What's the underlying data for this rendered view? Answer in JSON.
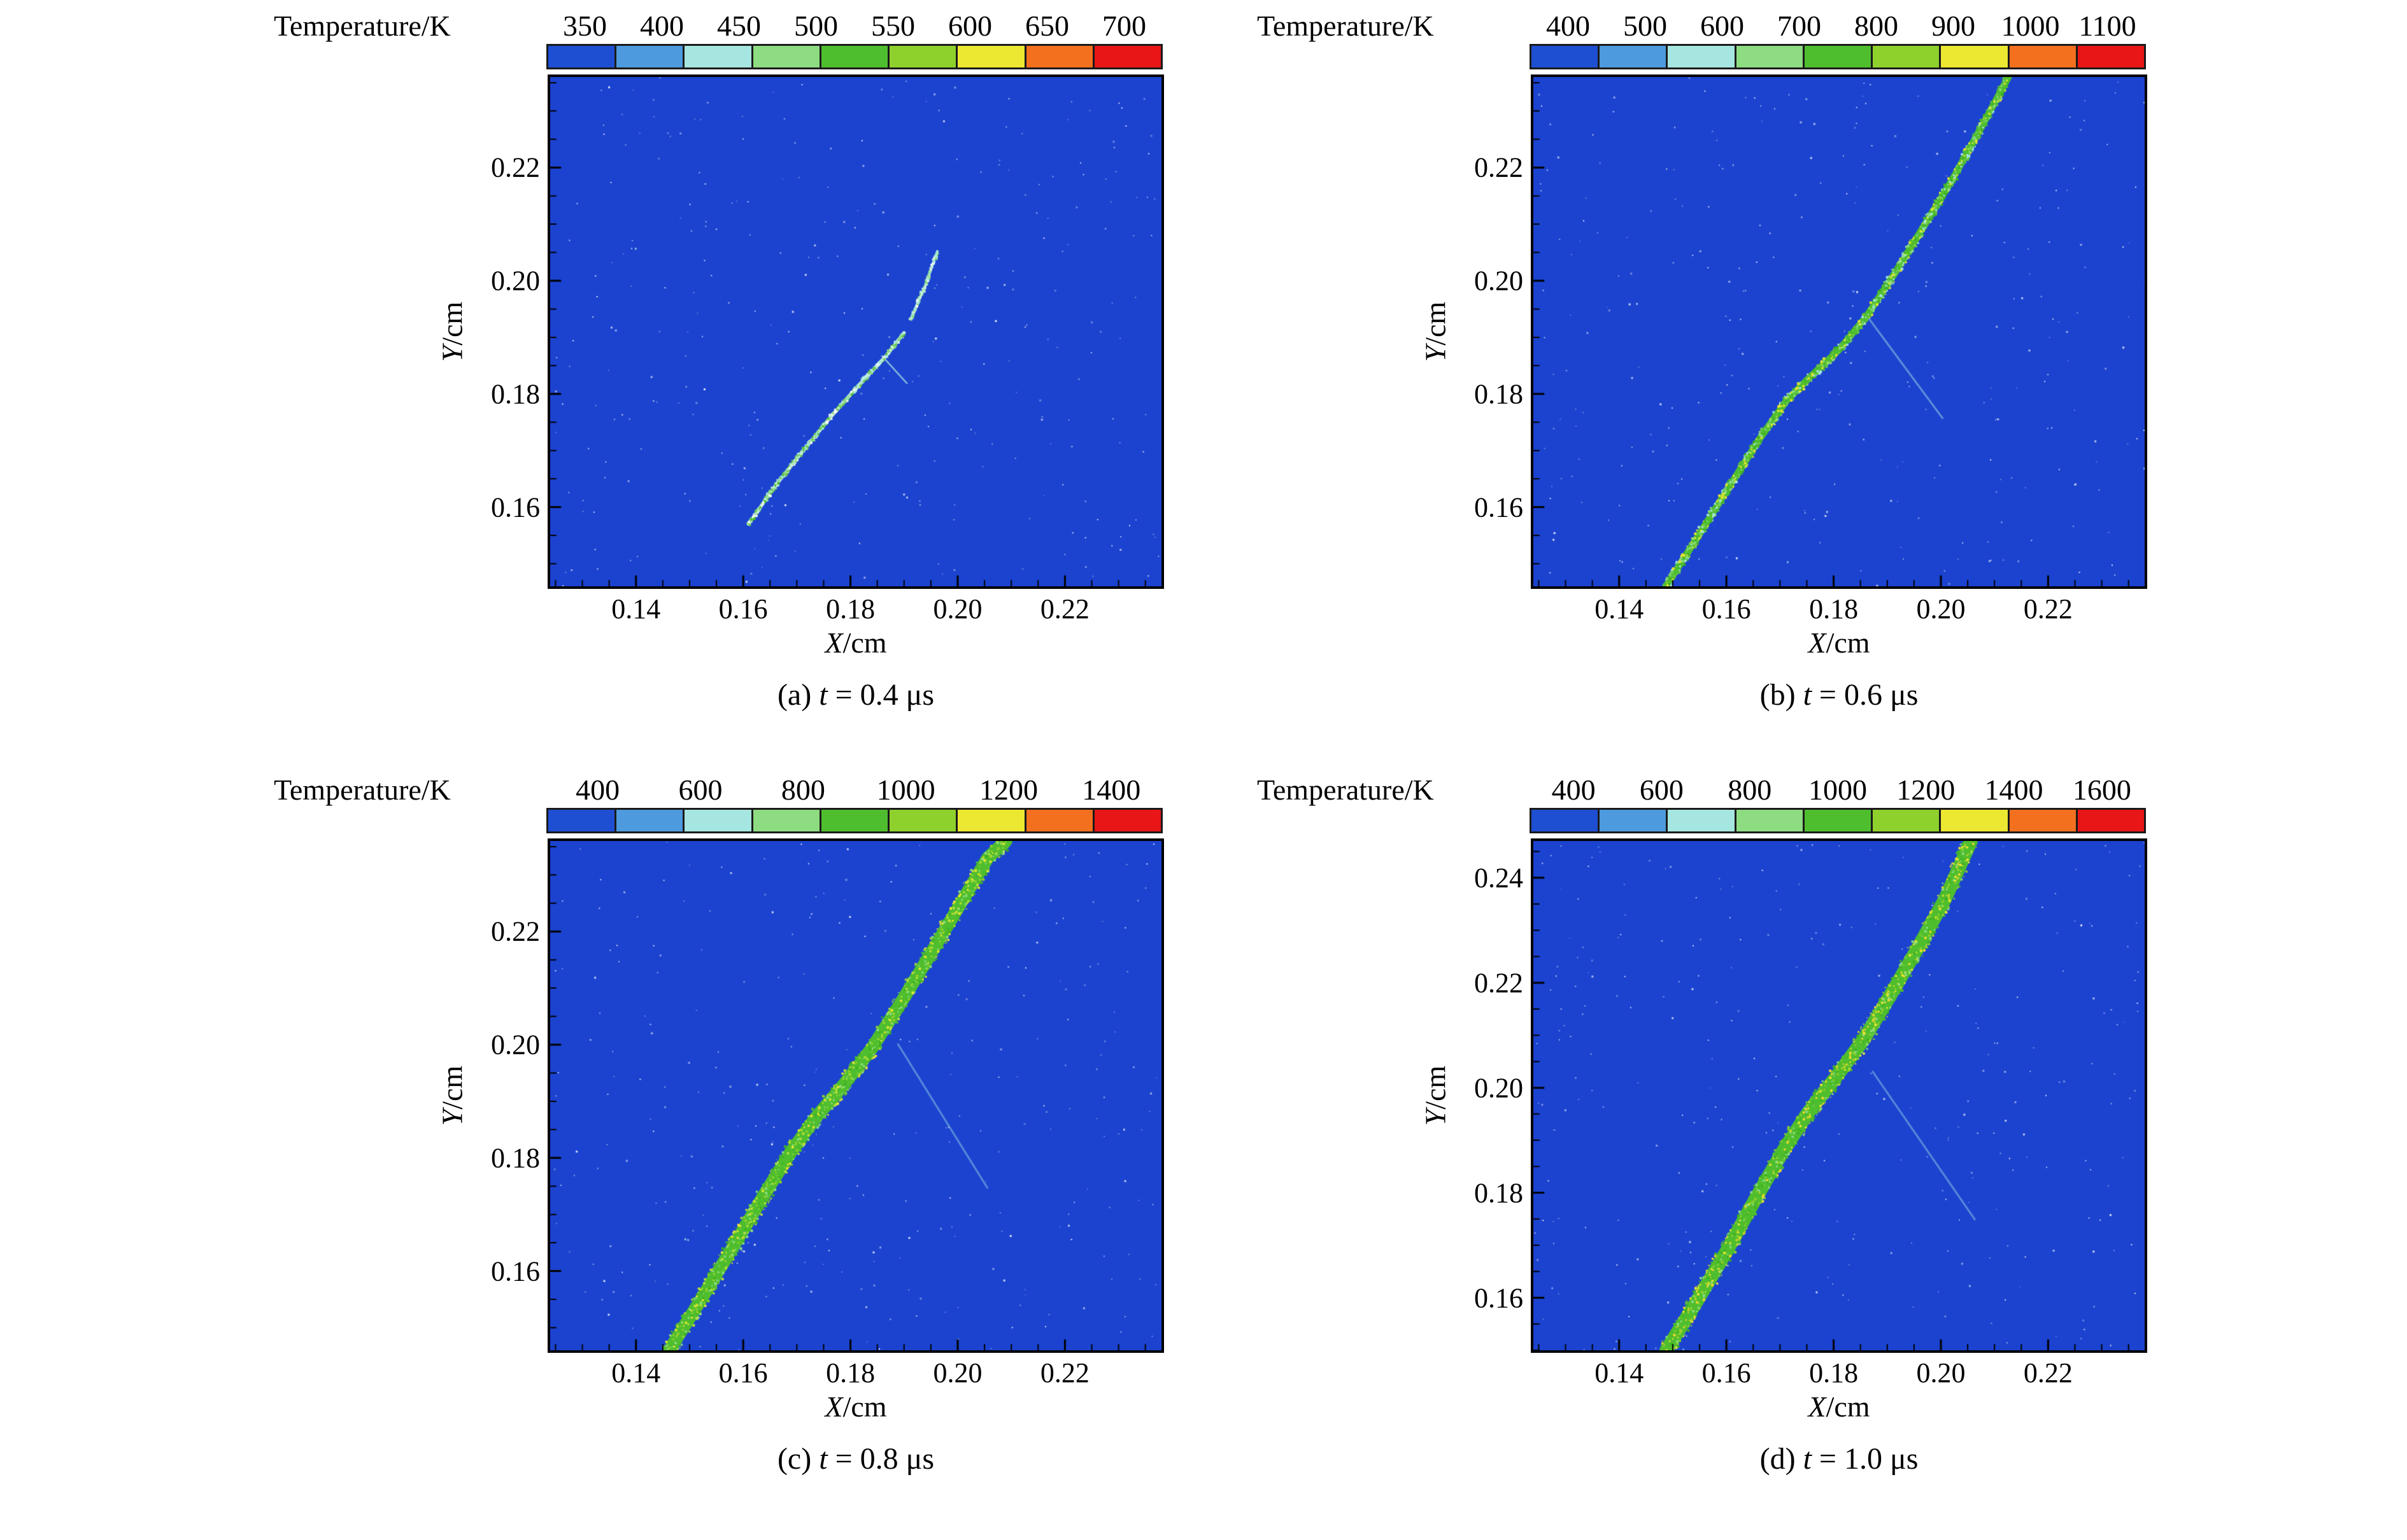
{
  "chart_data": [
    {
      "type": "heatmap",
      "caption_prefix": "(a) ",
      "caption_symbol": "t",
      "caption_suffix": " = 0.4 μs",
      "colorbar": {
        "title": "Temperature/K",
        "ticks": [
          "350",
          "400",
          "450",
          "500",
          "550",
          "600",
          "650",
          "700"
        ],
        "colors": [
          "#1e4fd2",
          "#4d9ade",
          "#a6e6e0",
          "#8edc82",
          "#4fbe2e",
          "#8fd12c",
          "#ece832",
          "#f2701e",
          "#e81616"
        ]
      },
      "axes": {
        "xlabel_symbol": "X",
        "xlabel_rest": "/cm",
        "ylabel_symbol": "Y",
        "ylabel_rest": "/cm",
        "x_ticks": [
          "0.14",
          "0.16",
          "0.18",
          "0.20",
          "0.22"
        ],
        "y_ticks": [
          "0.16",
          "0.18",
          "0.20",
          "0.22"
        ],
        "xlim": [
          0.124,
          0.238
        ],
        "ylim": [
          0.146,
          0.236
        ],
        "minor_step": 0.005
      },
      "field": {
        "background": "#1b43d0",
        "speckle_count": 300,
        "segments": [
          {
            "points": [
              [
                0.161,
                0.157
              ],
              [
                0.166,
                0.1638
              ],
              [
                0.1712,
                0.17
              ],
              [
                0.1762,
                0.1758
              ],
              [
                0.1812,
                0.1812
              ],
              [
                0.1862,
                0.1862
              ],
              [
                0.19,
                0.1908
              ]
            ],
            "width": 0.0004,
            "colors": [
              "#bfe9d8",
              "#a6e6e0",
              "#8edc82",
              "#ffffff",
              "#6cc84e",
              "#4fbe2e"
            ]
          },
          {
            "points": [
              [
                0.1912,
                0.1932
              ],
              [
                0.1938,
                0.1988
              ],
              [
                0.1962,
                0.2052
              ]
            ],
            "width": 0.0003,
            "colors": [
              "#a6e6e0",
              "#bfe9d8",
              "#8edc82",
              "#ffffff"
            ]
          }
        ],
        "branches": [
          {
            "from": [
              0.1858,
              0.1868
            ],
            "to": [
              0.1906,
              0.1818
            ],
            "color": "#9fd8e0",
            "alpha": 0.8,
            "width": 2.5
          }
        ]
      }
    },
    {
      "type": "heatmap",
      "caption_prefix": "(b) ",
      "caption_symbol": "t",
      "caption_suffix": " = 0.6 μs",
      "colorbar": {
        "title": "Temperature/K",
        "ticks": [
          "400",
          "500",
          "600",
          "700",
          "800",
          "900",
          "1000",
          "1100"
        ],
        "colors": [
          "#1e4fd2",
          "#4d9ade",
          "#a6e6e0",
          "#8edc82",
          "#4fbe2e",
          "#8fd12c",
          "#ece832",
          "#f2701e",
          "#e81616"
        ]
      },
      "axes": {
        "xlabel_symbol": "X",
        "xlabel_rest": "/cm",
        "ylabel_symbol": "Y",
        "ylabel_rest": "/cm",
        "x_ticks": [
          "0.14",
          "0.16",
          "0.18",
          "0.20",
          "0.22"
        ],
        "y_ticks": [
          "0.16",
          "0.18",
          "0.20",
          "0.22"
        ],
        "xlim": [
          0.124,
          0.238
        ],
        "ylim": [
          0.146,
          0.236
        ],
        "minor_step": 0.005
      },
      "field": {
        "background": "#1b43d0",
        "speckle_count": 300,
        "segments": [
          {
            "points": [
              [
                0.1487,
                0.146
              ],
              [
                0.1544,
                0.1544
              ],
              [
                0.16,
                0.1628
              ],
              [
                0.166,
                0.1718
              ],
              [
                0.1712,
                0.1788
              ],
              [
                0.1756,
                0.183
              ],
              [
                0.181,
                0.1878
              ],
              [
                0.1862,
                0.1938
              ],
              [
                0.1916,
                0.2016
              ],
              [
                0.1968,
                0.2096
              ],
              [
                0.2022,
                0.218
              ],
              [
                0.2076,
                0.2272
              ],
              [
                0.2126,
                0.236
              ]
            ],
            "width": 0.0008,
            "colors": [
              "#4fbe2e",
              "#8edc82",
              "#ece832",
              "#6cc84e",
              "#a6e6e0",
              "#3db023"
            ]
          }
        ],
        "branches": [
          {
            "from": [
              0.1862,
              0.1938
            ],
            "to": [
              0.2004,
              0.1756
            ],
            "color": "#8fd4e4",
            "alpha": 0.55,
            "width": 3
          }
        ]
      }
    },
    {
      "type": "heatmap",
      "caption_prefix": "(c) ",
      "caption_symbol": "t",
      "caption_suffix": " = 0.8 μs",
      "colorbar": {
        "title": "Temperature/K",
        "ticks": [
          "400",
          "600",
          "800",
          "1000",
          "1200",
          "1400"
        ],
        "colors": [
          "#1e4fd2",
          "#4d9ade",
          "#a6e6e0",
          "#8edc82",
          "#4fbe2e",
          "#8fd12c",
          "#ece832",
          "#f2701e",
          "#e81616"
        ]
      },
      "axes": {
        "xlabel_symbol": "X",
        "xlabel_rest": "/cm",
        "ylabel_symbol": "Y",
        "ylabel_rest": "/cm",
        "x_ticks": [
          "0.14",
          "0.16",
          "0.18",
          "0.20",
          "0.22"
        ],
        "y_ticks": [
          "0.16",
          "0.18",
          "0.20",
          "0.22"
        ],
        "xlim": [
          0.124,
          0.238
        ],
        "ylim": [
          0.146,
          0.236
        ],
        "minor_step": 0.005
      },
      "field": {
        "background": "#1b43d0",
        "speckle_count": 300,
        "segments": [
          {
            "points": [
              [
                0.1462,
                0.146
              ],
              [
                0.152,
                0.1548
              ],
              [
                0.1578,
                0.1638
              ],
              [
                0.1636,
                0.173
              ],
              [
                0.169,
                0.1812
              ],
              [
                0.1736,
                0.1872
              ],
              [
                0.1788,
                0.193
              ],
              [
                0.184,
                0.1994
              ],
              [
                0.1894,
                0.2074
              ],
              [
                0.1948,
                0.2158
              ],
              [
                0.2002,
                0.2244
              ],
              [
                0.2056,
                0.233
              ],
              [
                0.209,
                0.236
              ]
            ],
            "width": 0.0015,
            "colors": [
              "#4fbe2e",
              "#8fd12c",
              "#ece832",
              "#8edc82",
              "#b8e03a",
              "#3db023"
            ]
          }
        ],
        "branches": [
          {
            "from": [
              0.1888,
              0.2002
            ],
            "to": [
              0.2056,
              0.1746
            ],
            "color": "#8fd4e4",
            "alpha": 0.5,
            "width": 3
          }
        ]
      }
    },
    {
      "type": "heatmap",
      "caption_prefix": "(d) ",
      "caption_symbol": "t",
      "caption_suffix": " = 1.0 μs",
      "colorbar": {
        "title": "Temperature/K",
        "ticks": [
          "400",
          "600",
          "800",
          "1000",
          "1200",
          "1400",
          "1600"
        ],
        "colors": [
          "#1e4fd2",
          "#4d9ade",
          "#a6e6e0",
          "#8edc82",
          "#4fbe2e",
          "#8fd12c",
          "#ece832",
          "#f2701e",
          "#e81616"
        ]
      },
      "axes": {
        "xlabel_symbol": "X",
        "xlabel_rest": "/cm",
        "ylabel_symbol": "Y",
        "ylabel_rest": "/cm",
        "x_ticks": [
          "0.14",
          "0.16",
          "0.18",
          "0.20",
          "0.22"
        ],
        "y_ticks": [
          "0.16",
          "0.18",
          "0.20",
          "0.22",
          "0.24"
        ],
        "xlim": [
          0.124,
          0.238
        ],
        "ylim": [
          0.15,
          0.247
        ],
        "minor_step": 0.005
      },
      "field": {
        "background": "#1b43d0",
        "speckle_count": 300,
        "segments": [
          {
            "points": [
              [
                0.1488,
                0.15
              ],
              [
                0.1544,
                0.1592
              ],
              [
                0.16,
                0.1688
              ],
              [
                0.1654,
                0.1788
              ],
              [
                0.1706,
                0.188
              ],
              [
                0.1752,
                0.1952
              ],
              [
                0.1804,
                0.202
              ],
              [
                0.1856,
                0.2092
              ],
              [
                0.1908,
                0.218
              ],
              [
                0.1958,
                0.2268
              ],
              [
                0.2008,
                0.236
              ],
              [
                0.2056,
                0.247
              ]
            ],
            "width": 0.0016,
            "colors": [
              "#4fbe2e",
              "#8fd12c",
              "#ece832",
              "#8edc82",
              "#f0d82e",
              "#3db023"
            ]
          }
        ],
        "branches": [
          {
            "from": [
              0.1872,
              0.2032
            ],
            "to": [
              0.2064,
              0.1748
            ],
            "color": "#8fd4e4",
            "alpha": 0.5,
            "width": 3
          }
        ]
      }
    }
  ]
}
